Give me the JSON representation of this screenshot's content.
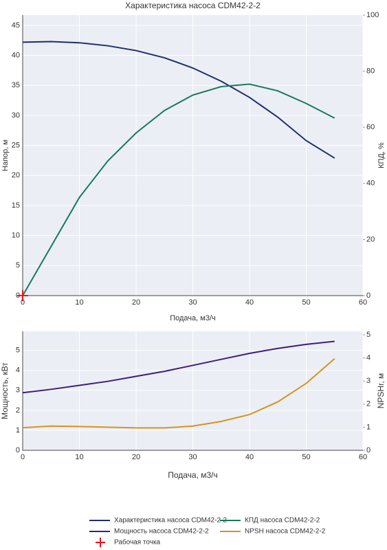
{
  "chart_data": [
    {
      "type": "line",
      "title": "Характеристика насоса CDM42-2-2",
      "xlabel": "Подача, м3/ч",
      "ylabel": "Напор, м",
      "y2label": "КПД, %",
      "x": [
        0,
        5,
        10,
        15,
        20,
        25,
        30,
        35,
        40,
        45,
        50,
        55
      ],
      "xlim": [
        0,
        60
      ],
      "xticks": [
        0,
        10,
        20,
        30,
        40,
        50,
        60
      ],
      "ylim": [
        0,
        46.7
      ],
      "yticks": [
        0,
        5,
        10,
        15,
        20,
        25,
        30,
        35,
        40,
        45
      ],
      "y2lim": [
        0,
        100
      ],
      "y2ticks": [
        0,
        20,
        40,
        60,
        80,
        100
      ],
      "grid": true,
      "series": [
        {
          "name": "Характеристика насоса CDM42-2-2",
          "color": "#1f2d6b",
          "values": [
            42.2,
            42.3,
            42.1,
            41.6,
            40.8,
            39.6,
            37.9,
            35.7,
            33.0,
            29.7,
            25.8,
            22.9
          ]
        },
        {
          "name": "КПД насоса CDM42-2-2",
          "color": "#16795c",
          "axis": "y2",
          "values": [
            0,
            17.5,
            35,
            48,
            58,
            66,
            71.5,
            74.5,
            75.4,
            73,
            68.5,
            63.3
          ]
        },
        {
          "name": "Рабочая точка",
          "color": "#e8141e",
          "marker": "cross",
          "x": [
            0
          ],
          "values": [
            0
          ]
        }
      ]
    },
    {
      "type": "line",
      "xlabel": "Подача, м3/ч",
      "ylabel": "Мощность, кВт",
      "y2label": "NPSHr, м",
      "x": [
        0,
        5,
        10,
        15,
        20,
        25,
        30,
        35,
        40,
        45,
        50,
        55
      ],
      "xlim": [
        0,
        60
      ],
      "xticks": [
        0,
        10,
        20,
        30,
        40,
        50,
        60
      ],
      "ylim": [
        0,
        5.95
      ],
      "yticks": [
        0,
        1,
        2,
        3,
        4,
        5
      ],
      "y2lim": [
        0,
        5.15
      ],
      "y2ticks": [
        0,
        1,
        2,
        3,
        4,
        5
      ],
      "grid": true,
      "series": [
        {
          "name": "Мощность насоса CDM42-2-2",
          "color": "#3d1d7c",
          "values": [
            2.88,
            3.05,
            3.25,
            3.45,
            3.7,
            3.95,
            4.25,
            4.55,
            4.85,
            5.1,
            5.3,
            5.45
          ]
        },
        {
          "name": "NPSH насоса CDM42-2-2",
          "color": "#d4941c",
          "axis": "y2",
          "values": [
            0.98,
            1.05,
            1.03,
            1.0,
            0.97,
            0.97,
            1.05,
            1.25,
            1.55,
            2.1,
            2.9,
            3.97
          ]
        }
      ]
    }
  ]
}
